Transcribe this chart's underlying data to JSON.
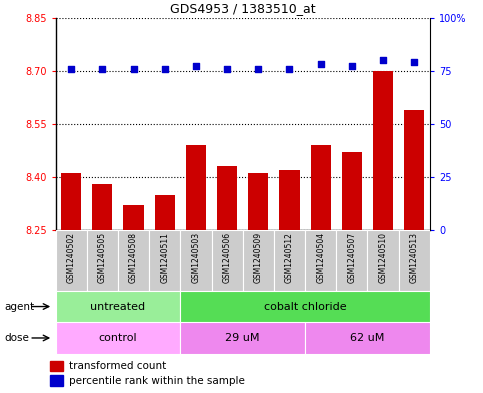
{
  "title": "GDS4953 / 1383510_at",
  "samples": [
    "GSM1240502",
    "GSM1240505",
    "GSM1240508",
    "GSM1240511",
    "GSM1240503",
    "GSM1240506",
    "GSM1240509",
    "GSM1240512",
    "GSM1240504",
    "GSM1240507",
    "GSM1240510",
    "GSM1240513"
  ],
  "bar_values": [
    8.41,
    8.38,
    8.32,
    8.35,
    8.49,
    8.43,
    8.41,
    8.42,
    8.49,
    8.47,
    8.7,
    8.59
  ],
  "percentile_values": [
    76,
    76,
    76,
    76,
    77,
    76,
    76,
    76,
    78,
    77,
    80,
    79
  ],
  "ylim_left": [
    8.25,
    8.85
  ],
  "ylim_right": [
    0,
    100
  ],
  "yticks_left": [
    8.25,
    8.4,
    8.55,
    8.7,
    8.85
  ],
  "yticks_right": [
    0,
    25,
    50,
    75,
    100
  ],
  "ytick_labels_right": [
    "0",
    "25",
    "50",
    "75",
    "100%"
  ],
  "bar_color": "#cc0000",
  "dot_color": "#0000cc",
  "agent_untreated_color": "#99ee99",
  "agent_cobalt_color": "#55dd55",
  "dose_control_color": "#ffaaff",
  "dose_29_color": "#ee88ee",
  "dose_62_color": "#ee88ee",
  "agent_groups": [
    {
      "label": "untreated",
      "start": 0,
      "end": 4
    },
    {
      "label": "cobalt chloride",
      "start": 4,
      "end": 12
    }
  ],
  "dose_groups": [
    {
      "label": "control",
      "start": 0,
      "end": 4
    },
    {
      "label": "29 uM",
      "start": 4,
      "end": 8
    },
    {
      "label": "62 uM",
      "start": 8,
      "end": 12
    }
  ],
  "legend_bar_label": "transformed count",
  "legend_dot_label": "percentile rank within the sample",
  "tick_area_bg": "#cccccc",
  "grid_dotted_color": "#000000"
}
